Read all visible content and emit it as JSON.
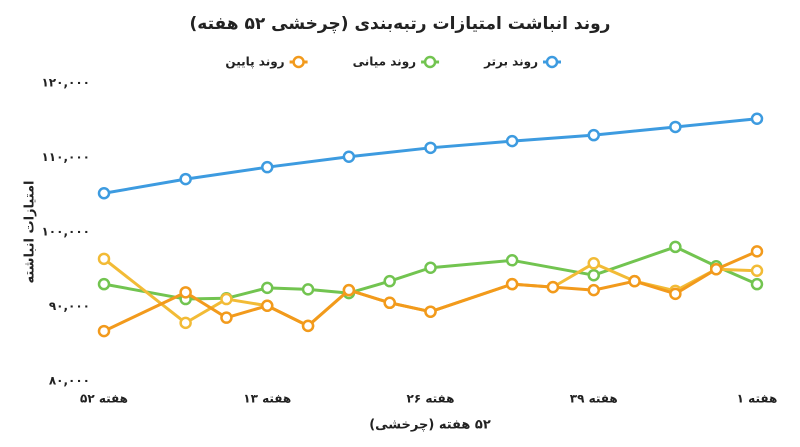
{
  "chart_data": {
    "type": "line",
    "title": "روند انباشت امتیازات رتبه‌بندی (چرخشی ۵۲ هفته)",
    "x_label": "۵۲ هفته (چرخشی)",
    "y_label": "امتیازات انباشته",
    "xlim": [
      0,
      16
    ],
    "xticks": [
      {
        "value": 0,
        "label": "هفته ۵۲"
      },
      {
        "value": 4,
        "label": "هفته ۱۳"
      },
      {
        "value": 8,
        "label": "هفته ۲۶"
      },
      {
        "value": 12,
        "label": "هفته ۳۹"
      },
      {
        "value": 16,
        "label": "هفته ۱"
      }
    ],
    "ylim": [
      80000,
      120000
    ],
    "yticks": [
      {
        "value": 80000,
        "label": "۸۰,۰۰۰"
      },
      {
        "value": 90000,
        "label": "۹۰,۰۰۰"
      },
      {
        "value": 100000,
        "label": "۱۰۰,۰۰۰"
      },
      {
        "value": 110000,
        "label": "۱۱۰,۰۰۰"
      },
      {
        "value": 120000,
        "label": "۱۲۰,۰۰۰"
      }
    ],
    "grid": false,
    "legend": "top",
    "series": [
      {
        "name": "روند برتر",
        "color": "#3d9be0",
        "x": [
          0,
          2,
          4,
          6,
          8,
          10,
          12,
          14,
          16
        ],
        "values": [
          105200,
          107100,
          108700,
          110100,
          111300,
          112200,
          113000,
          114100,
          115200
        ]
      },
      {
        "name": "روند میانی",
        "color": "#72c450",
        "x": [
          0,
          2,
          3,
          4,
          5,
          6,
          7,
          8,
          10,
          12,
          14,
          15,
          16
        ],
        "values": [
          93000,
          91000,
          91100,
          92500,
          92300,
          91800,
          93400,
          95200,
          96200,
          94200,
          98000,
          95400,
          93000
        ]
      },
      {
        "color": "#f2bb36",
        "x": [
          0,
          2,
          3,
          4,
          5,
          6,
          7,
          8,
          10,
          11,
          12,
          13,
          14,
          15,
          16
        ],
        "values": [
          96400,
          87800,
          91000,
          90100,
          87400,
          92200,
          90500,
          89300,
          93000,
          92600,
          95800,
          93400,
          92100,
          95000,
          94800
        ]
      },
      {
        "name": "روند پایین",
        "color": "#f29a1c",
        "x": [
          0,
          2,
          3,
          4,
          5,
          6,
          7,
          8,
          10,
          11,
          12,
          13,
          14,
          15,
          16
        ],
        "values": [
          86700,
          91900,
          88500,
          90100,
          87400,
          92200,
          90500,
          89300,
          93000,
          92600,
          92200,
          93400,
          91700,
          95000,
          97400
        ]
      }
    ]
  }
}
